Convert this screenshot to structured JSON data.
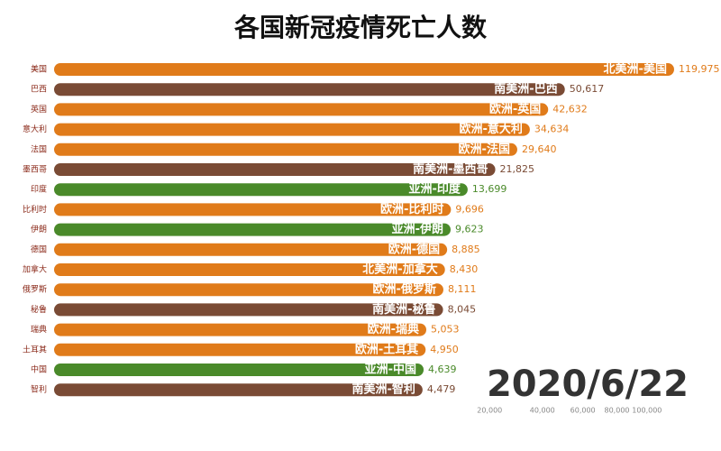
{
  "chart_data": {
    "type": "bar",
    "orientation": "horizontal",
    "title": "各国新冠疫情死亡人数",
    "annotation": "2020/6/22",
    "x_scale": "sqrt",
    "categories": [
      "美国",
      "巴西",
      "英国",
      "意大利",
      "法国",
      "墨西哥",
      "印度",
      "比利时",
      "伊朗",
      "德国",
      "加拿大",
      "俄罗斯",
      "秘鲁",
      "瑞典",
      "土耳其",
      "中国",
      "智利"
    ],
    "bar_labels": [
      "北美洲-美国",
      "南美洲-巴西",
      "欧洲-英国",
      "欧洲-意大利",
      "欧洲-法国",
      "南美洲-墨西哥",
      "亚洲-印度",
      "欧洲-比利时",
      "亚洲-伊朗",
      "欧洲-德国",
      "北美洲-加拿大",
      "欧洲-俄罗斯",
      "南美洲-秘鲁",
      "欧洲-瑞典",
      "欧洲-土耳其",
      "亚洲-中国",
      "南美洲-智利"
    ],
    "values": [
      119975,
      50617,
      42632,
      34634,
      29640,
      21825,
      13699,
      9696,
      9623,
      8885,
      8430,
      8111,
      8045,
      5053,
      4950,
      4639,
      4479
    ],
    "value_labels": [
      "119,975",
      "50,617",
      "42,632",
      "34,634",
      "29,640",
      "21,825",
      "13,699",
      "9,696",
      "9,623",
      "8,885",
      "8,430",
      "8,111",
      "8,045",
      "5,053",
      "4,950",
      "4,639",
      "4,479"
    ],
    "colors": [
      "#e07b1a",
      "#7a4b35",
      "#e07b1a",
      "#e07b1a",
      "#e07b1a",
      "#7a4b35",
      "#4a8a2a",
      "#e07b1a",
      "#4a8a2a",
      "#e07b1a",
      "#e07b1a",
      "#e07b1a",
      "#7a4b35",
      "#e07b1a",
      "#e07b1a",
      "#4a8a2a",
      "#7a4b35"
    ],
    "xlim": [
      0,
      120000
    ],
    "xticks": [
      {
        "value": 20000,
        "label": "20,000"
      },
      {
        "value": 40000,
        "label": "40,000"
      },
      {
        "value": 60000,
        "label": "60,000"
      },
      {
        "value": 80000,
        "label": "80,000"
      },
      {
        "value": 100000,
        "label": "100,000"
      }
    ]
  }
}
